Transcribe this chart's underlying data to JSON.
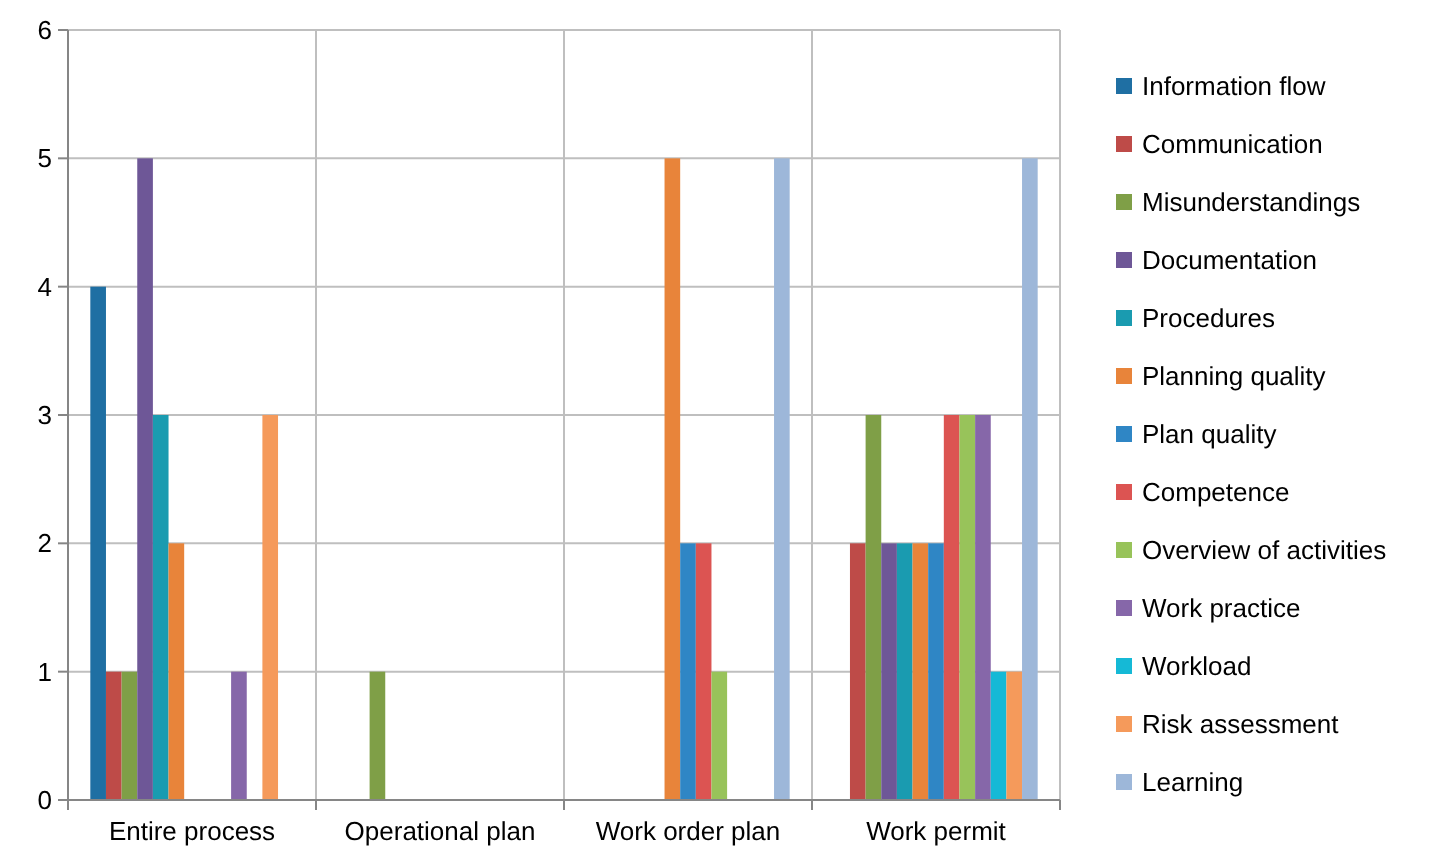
{
  "chart_data": {
    "type": "bar",
    "categories": [
      "Entire process",
      "Operational plan",
      "Work order plan",
      "Work permit"
    ],
    "series": [
      {
        "name": "Information flow",
        "color": "#1f6fa3",
        "values": [
          4,
          0,
          0,
          0
        ]
      },
      {
        "name": "Communication",
        "color": "#be4b48",
        "values": [
          1,
          0,
          0,
          2
        ]
      },
      {
        "name": "Misunderstandings",
        "color": "#7f9f47",
        "values": [
          1,
          1,
          0,
          3
        ]
      },
      {
        "name": "Documentation",
        "color": "#6e5797",
        "values": [
          5,
          0,
          0,
          2
        ]
      },
      {
        "name": "Procedures",
        "color": "#1a9bb0",
        "values": [
          3,
          0,
          0,
          2
        ]
      },
      {
        "name": "Planning quality",
        "color": "#e8843a",
        "values": [
          2,
          0,
          5,
          2
        ]
      },
      {
        "name": "Plan quality",
        "color": "#2f86c5",
        "values": [
          0,
          0,
          2,
          2
        ]
      },
      {
        "name": "Competence",
        "color": "#dc5452",
        "values": [
          0,
          0,
          2,
          3
        ]
      },
      {
        "name": "Overview of activities",
        "color": "#98c35a",
        "values": [
          0,
          0,
          1,
          3
        ]
      },
      {
        "name": "Work practice",
        "color": "#8667a9",
        "values": [
          1,
          0,
          0,
          3
        ]
      },
      {
        "name": "Workload",
        "color": "#15b9d6",
        "values": [
          0,
          0,
          0,
          1
        ]
      },
      {
        "name": "Risk assessment",
        "color": "#f59a5b",
        "values": [
          3,
          0,
          0,
          1
        ]
      },
      {
        "name": "Learning",
        "color": "#9db7d9",
        "values": [
          0,
          0,
          5,
          5
        ]
      }
    ],
    "ylim": [
      0,
      6
    ],
    "yticks": [
      0,
      1,
      2,
      3,
      4,
      5,
      6
    ],
    "grid": true,
    "legend": "right"
  }
}
